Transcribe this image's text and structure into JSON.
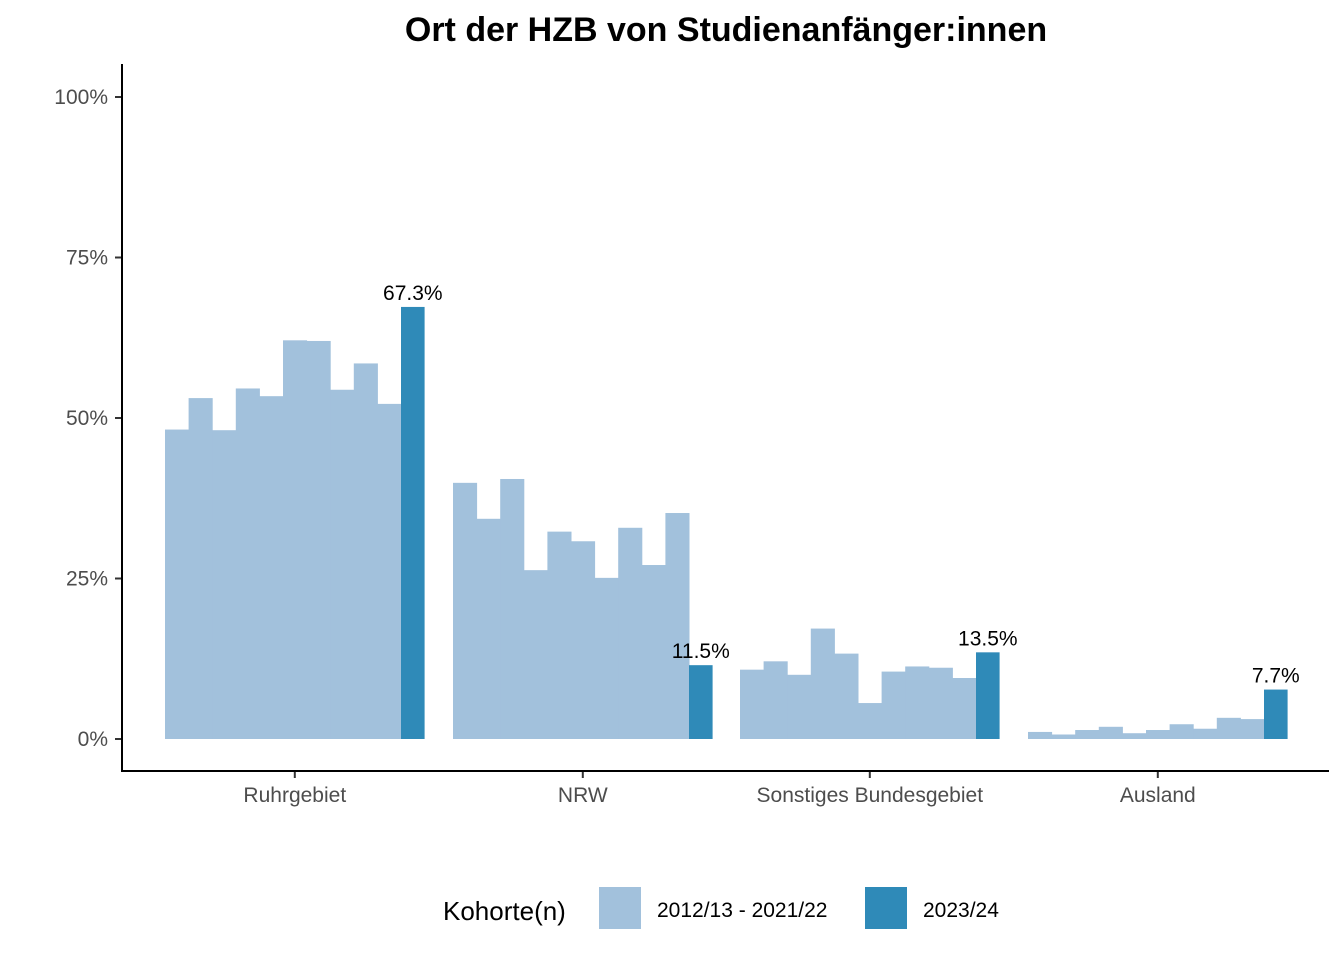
{
  "chart_data": {
    "type": "bar",
    "title": "Ort der HZB von Studienanfänger:innen",
    "xlabel": "",
    "ylabel": "",
    "categories": [
      "Ruhrgebiet",
      "NRW",
      "Sonstiges Bundesgebiet",
      "Ausland"
    ],
    "y_ticks": [
      "0%",
      "25%",
      "50%",
      "75%",
      "100%"
    ],
    "ylim": [
      0,
      100
    ],
    "grid": false,
    "legend": {
      "title": "Kohorte(n)",
      "placement": "bottom",
      "entries": [
        "2012/13 - 2021/22",
        "2023/24"
      ]
    },
    "series": [
      {
        "name": "2012/13 - 2021/22",
        "color": "#a2c1dc",
        "values": [
          [
            48.2,
            53.1,
            48.1,
            54.6,
            53.4,
            62.1,
            62.0,
            54.4,
            58.5,
            52.2
          ],
          [
            39.9,
            34.3,
            40.5,
            26.3,
            32.3,
            30.8,
            25.1,
            32.9,
            27.1,
            35.2
          ],
          [
            10.8,
            12.1,
            10.0,
            17.2,
            13.3,
            5.6,
            10.5,
            11.3,
            11.1,
            9.5
          ],
          [
            1.1,
            0.7,
            1.4,
            1.9,
            0.9,
            1.4,
            2.3,
            1.6,
            3.3,
            3.1
          ]
        ]
      },
      {
        "name": "2023/24",
        "color": "#2f8ab8",
        "values": [
          67.3,
          11.5,
          13.5,
          7.7
        ],
        "labels": [
          "67.3%",
          "11.5%",
          "13.5%",
          "7.7%"
        ]
      }
    ]
  }
}
